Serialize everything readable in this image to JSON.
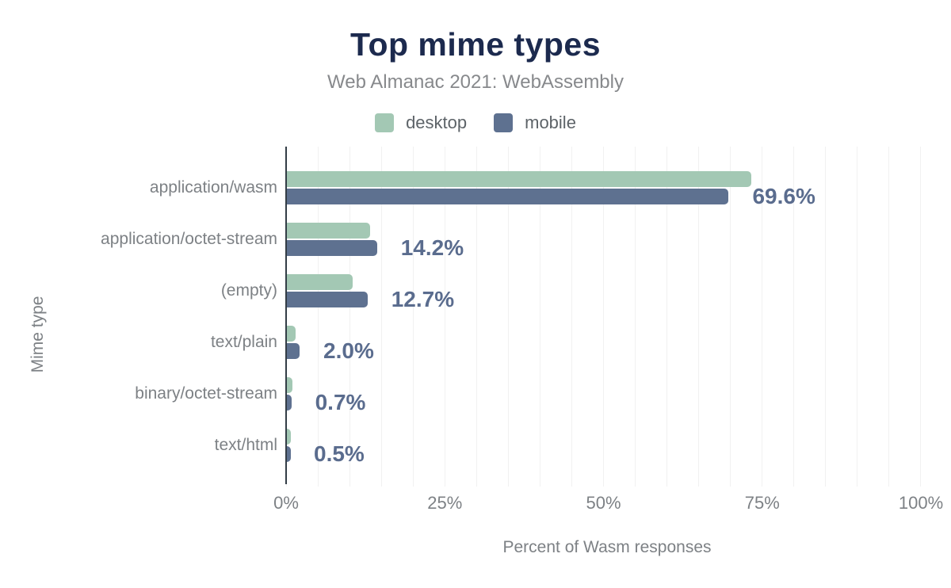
{
  "header": {
    "title": "Top mime types",
    "subtitle": "Web Almanac 2021: WebAssembly"
  },
  "legend": {
    "items": [
      {
        "label": "desktop",
        "color": "#a3c8b4"
      },
      {
        "label": "mobile",
        "color": "#5e7190"
      }
    ]
  },
  "chart_data": {
    "type": "bar",
    "orientation": "horizontal",
    "title": "Top mime types",
    "subtitle": "Web Almanac 2021: WebAssembly",
    "xlabel": "Percent of Wasm responses",
    "ylabel": "Mime type",
    "xlim": [
      0,
      100
    ],
    "grid": "vertical, minor every 5%, light gray",
    "legend_position": "top-center",
    "categories": [
      "application/wasm",
      "application/octet-stream",
      "(empty)",
      "text/plain",
      "binary/octet-stream",
      "text/html"
    ],
    "series": [
      {
        "name": "desktop",
        "color": "#a3c8b4",
        "values": [
          73.1,
          13.1,
          10.4,
          1.4,
          0.9,
          0.4
        ]
      },
      {
        "name": "mobile",
        "color": "#5e7190",
        "values": [
          69.6,
          14.2,
          12.7,
          2.0,
          0.7,
          0.5
        ]
      }
    ],
    "data_labels": [
      "69.6%",
      "14.2%",
      "12.7%",
      "2.0%",
      "0.7%",
      "0.5%"
    ],
    "data_labels_series": "mobile",
    "x_ticks": [
      {
        "value": 0,
        "label": "0%"
      },
      {
        "value": 25,
        "label": "25%"
      },
      {
        "value": 50,
        "label": "50%"
      },
      {
        "value": 75,
        "label": "75%"
      },
      {
        "value": 100,
        "label": "100%"
      }
    ]
  },
  "style": {
    "title_color": "#1c2a4e",
    "subtitle_color": "#87898c",
    "axis_text_color": "#7d8185",
    "data_label_color": "#5a6c8e",
    "axis_line_color": "#333d46",
    "gridline_color": "#f1f1f1",
    "background": "#ffffff"
  }
}
